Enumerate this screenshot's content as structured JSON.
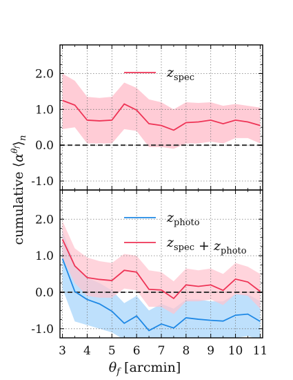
{
  "chart_data": {
    "type": "line",
    "ylabel": "cumulative ⟨α^θf⟩n",
    "xlabel": "θf [arcmin]",
    "x_ticks": [
      3,
      4,
      5,
      6,
      7,
      8,
      9,
      10,
      11
    ],
    "y_tick_labels": [
      "-1.0",
      "0.0",
      "1.0",
      "2.0"
    ],
    "x_tick_labels": [
      "3",
      "4",
      "5",
      "6",
      "7",
      "8",
      "9",
      "10",
      "11"
    ],
    "xlim": [
      2.9,
      11.1
    ],
    "grid": true,
    "panels": [
      {
        "ylim": [
          -1.25,
          2.8
        ],
        "legend_position": "top-center",
        "series": [
          {
            "name": "zspec",
            "color": "#ee3355",
            "band_color": "#ffc3cf",
            "x": [
              3.0,
              3.5,
              4.0,
              4.5,
              5.0,
              5.5,
              6.0,
              6.5,
              7.0,
              7.5,
              8.0,
              8.5,
              9.0,
              9.5,
              10.0,
              10.5,
              11.0
            ],
            "y": [
              1.25,
              1.12,
              0.7,
              0.68,
              0.7,
              1.15,
              0.98,
              0.6,
              0.55,
              0.42,
              0.63,
              0.65,
              0.7,
              0.6,
              0.7,
              0.65,
              0.55
            ],
            "upper": [
              2.0,
              1.8,
              1.35,
              1.32,
              1.35,
              1.75,
              1.6,
              1.28,
              1.2,
              1.0,
              1.2,
              1.18,
              1.2,
              1.1,
              1.15,
              1.1,
              1.05
            ],
            "lower": [
              0.45,
              0.5,
              0.05,
              0.05,
              0.05,
              0.45,
              0.4,
              -0.05,
              -0.05,
              -0.1,
              0.05,
              0.05,
              0.1,
              0.05,
              0.2,
              0.2,
              0.05
            ]
          }
        ]
      },
      {
        "ylim": [
          -1.25,
          2.8
        ],
        "legend_position": "top-center",
        "series": [
          {
            "name": "zphoto",
            "color": "#1e88e5",
            "band_color": "#b3dafb",
            "x": [
              3.0,
              3.5,
              4.0,
              4.5,
              5.0,
              5.5,
              6.0,
              6.5,
              7.0,
              7.5,
              8.0,
              8.5,
              9.0,
              9.5,
              10.0,
              10.5,
              11.0
            ],
            "y": [
              0.92,
              0.02,
              -0.2,
              -0.32,
              -0.52,
              -0.85,
              -0.65,
              -1.05,
              -0.87,
              -0.98,
              -0.7,
              -0.74,
              -0.77,
              -0.79,
              -0.63,
              -0.6,
              -0.8
            ],
            "upper": [
              1.7,
              0.75,
              0.4,
              0.25,
              0.05,
              -0.3,
              -0.1,
              -0.5,
              -0.32,
              -0.45,
              -0.2,
              -0.2,
              -0.25,
              -0.25,
              -0.05,
              -0.05,
              -0.25
            ],
            "lower": [
              0.1,
              -0.8,
              -0.9,
              -1.0,
              -1.1,
              -1.3,
              -1.25,
              -1.3,
              -1.3,
              -1.3,
              -1.3,
              -1.3,
              -1.3,
              -1.3,
              -1.25,
              -1.2,
              -1.3
            ]
          },
          {
            "name": "zspec + zphoto",
            "color": "#ee3355",
            "band_color": "#ffc3cf",
            "x": [
              3.0,
              3.5,
              4.0,
              4.5,
              5.0,
              5.5,
              6.0,
              6.5,
              7.0,
              7.5,
              8.0,
              8.5,
              9.0,
              9.5,
              10.0,
              10.5,
              11.0
            ],
            "y": [
              1.45,
              0.72,
              0.4,
              0.35,
              0.32,
              0.6,
              0.55,
              0.08,
              0.06,
              -0.17,
              0.2,
              0.16,
              0.2,
              0.05,
              0.36,
              0.28,
              0.02
            ],
            "upper": [
              1.95,
              1.2,
              0.95,
              0.85,
              0.8,
              1.05,
              1.0,
              0.6,
              0.55,
              0.3,
              0.65,
              0.6,
              0.65,
              0.5,
              0.8,
              0.7,
              0.5
            ],
            "lower": [
              0.95,
              0.25,
              -0.1,
              -0.15,
              -0.15,
              0.1,
              0.05,
              -0.4,
              -0.4,
              -0.6,
              -0.25,
              -0.25,
              -0.2,
              -0.35,
              -0.05,
              -0.1,
              -0.45
            ]
          }
        ]
      }
    ]
  }
}
